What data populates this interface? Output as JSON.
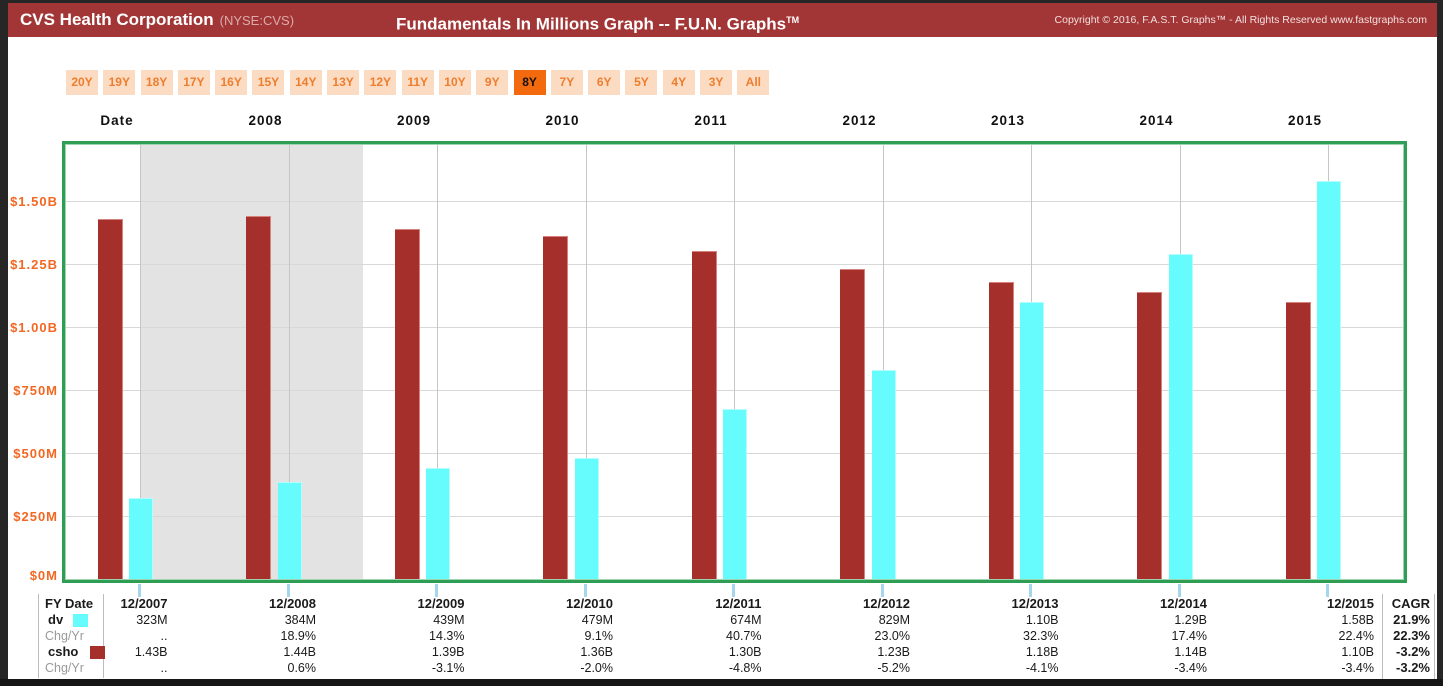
{
  "window": {
    "title": "CVS Health Corporation",
    "ticker": "(NYSE:CVS)",
    "graph_title": "Fundamentals In Millions Graph -- F.U.N. Graphs",
    "graph_title_tm": "TM",
    "copyright": "Copyright © 2016, F.A.S.T. Graphs™ - All Rights Reserved www.fastgraphs.com"
  },
  "period_selector": {
    "options": [
      "20Y",
      "19Y",
      "18Y",
      "17Y",
      "16Y",
      "15Y",
      "14Y",
      "13Y",
      "12Y",
      "11Y",
      "10Y",
      "9Y",
      "8Y",
      "7Y",
      "6Y",
      "5Y",
      "4Y",
      "3Y",
      "All"
    ],
    "selected": "8Y"
  },
  "colors": {
    "header_bg": "#a23636",
    "selected_button_bg": "#f26a0d",
    "button_bg": "#fbdcc3",
    "button_text": "#ee7d2e",
    "axis_label_orange": "#f26722",
    "dv_bar": "#66fbfc",
    "csho_bar": "#a42f2b",
    "recession_band": "#e3e3e3",
    "chart_border_green": "#2f9e55",
    "tick_mark_blue": "#a5d6ec"
  },
  "chart_data": {
    "type": "bar",
    "title": "Fundamentals In Millions Graph -- F.U.N. Graphs",
    "x_axis_header": "Date",
    "year_labels": [
      "2008",
      "2009",
      "2010",
      "2011",
      "2012",
      "2013",
      "2014",
      "2015"
    ],
    "categories": [
      "12/2007",
      "12/2008",
      "12/2009",
      "12/2010",
      "12/2011",
      "12/2012",
      "12/2013",
      "12/2014",
      "12/2015"
    ],
    "series": [
      {
        "name": "csho",
        "color": "#a42f2b",
        "values_millions": [
          1430,
          1440,
          1390,
          1360,
          1300,
          1230,
          1180,
          1140,
          1100
        ],
        "labels": [
          "1.43B",
          "1.44B",
          "1.39B",
          "1.36B",
          "1.30B",
          "1.23B",
          "1.18B",
          "1.14B",
          "1.10B"
        ]
      },
      {
        "name": "dv",
        "color": "#66fbfc",
        "values_millions": [
          323,
          384,
          439,
          479,
          674,
          829,
          1100,
          1290,
          1580
        ],
        "labels": [
          "323M",
          "384M",
          "439M",
          "479M",
          "674M",
          "829M",
          "1.10B",
          "1.29B",
          "1.58B"
        ]
      }
    ],
    "y_axis": {
      "tick_labels": [
        "$0M",
        "$250M",
        "$500M",
        "$750M",
        "$1.00B",
        "$1.25B",
        "$1.50B"
      ],
      "tick_values_millions": [
        0,
        250,
        500,
        750,
        1000,
        1250,
        1500
      ],
      "ylim_millions": [
        0,
        1730
      ]
    },
    "recession_band_columns": [
      0,
      1.5
    ],
    "grid": true,
    "legend_position": "bottom-table"
  },
  "table": {
    "corner_header": "FY Date",
    "cagr_header": "CAGR",
    "columns": [
      "12/2007",
      "12/2008",
      "12/2009",
      "12/2010",
      "12/2011",
      "12/2012",
      "12/2013",
      "12/2014",
      "12/2015"
    ],
    "rows": [
      {
        "label": "dv",
        "swatch": "#66fbfc",
        "bold": true,
        "values": [
          "323M",
          "384M",
          "439M",
          "479M",
          "674M",
          "829M",
          "1.10B",
          "1.29B",
          "1.58B"
        ],
        "cagr": "21.9%"
      },
      {
        "label": "Chg/Yr",
        "muted": true,
        "values": [
          "..",
          "18.9%",
          "14.3%",
          "9.1%",
          "40.7%",
          "23.0%",
          "32.3%",
          "17.4%",
          "22.4%"
        ],
        "cagr": "22.3%"
      },
      {
        "label": "csho",
        "swatch": "#a42f2b",
        "bold": true,
        "values": [
          "1.43B",
          "1.44B",
          "1.39B",
          "1.36B",
          "1.30B",
          "1.23B",
          "1.18B",
          "1.14B",
          "1.10B"
        ],
        "cagr": "-3.2%"
      },
      {
        "label": "Chg/Yr",
        "muted": true,
        "values": [
          "..",
          "0.6%",
          "-3.1%",
          "-2.0%",
          "-4.8%",
          "-5.2%",
          "-4.1%",
          "-3.4%",
          "-3.4%"
        ],
        "cagr": "-3.2%"
      }
    ]
  }
}
